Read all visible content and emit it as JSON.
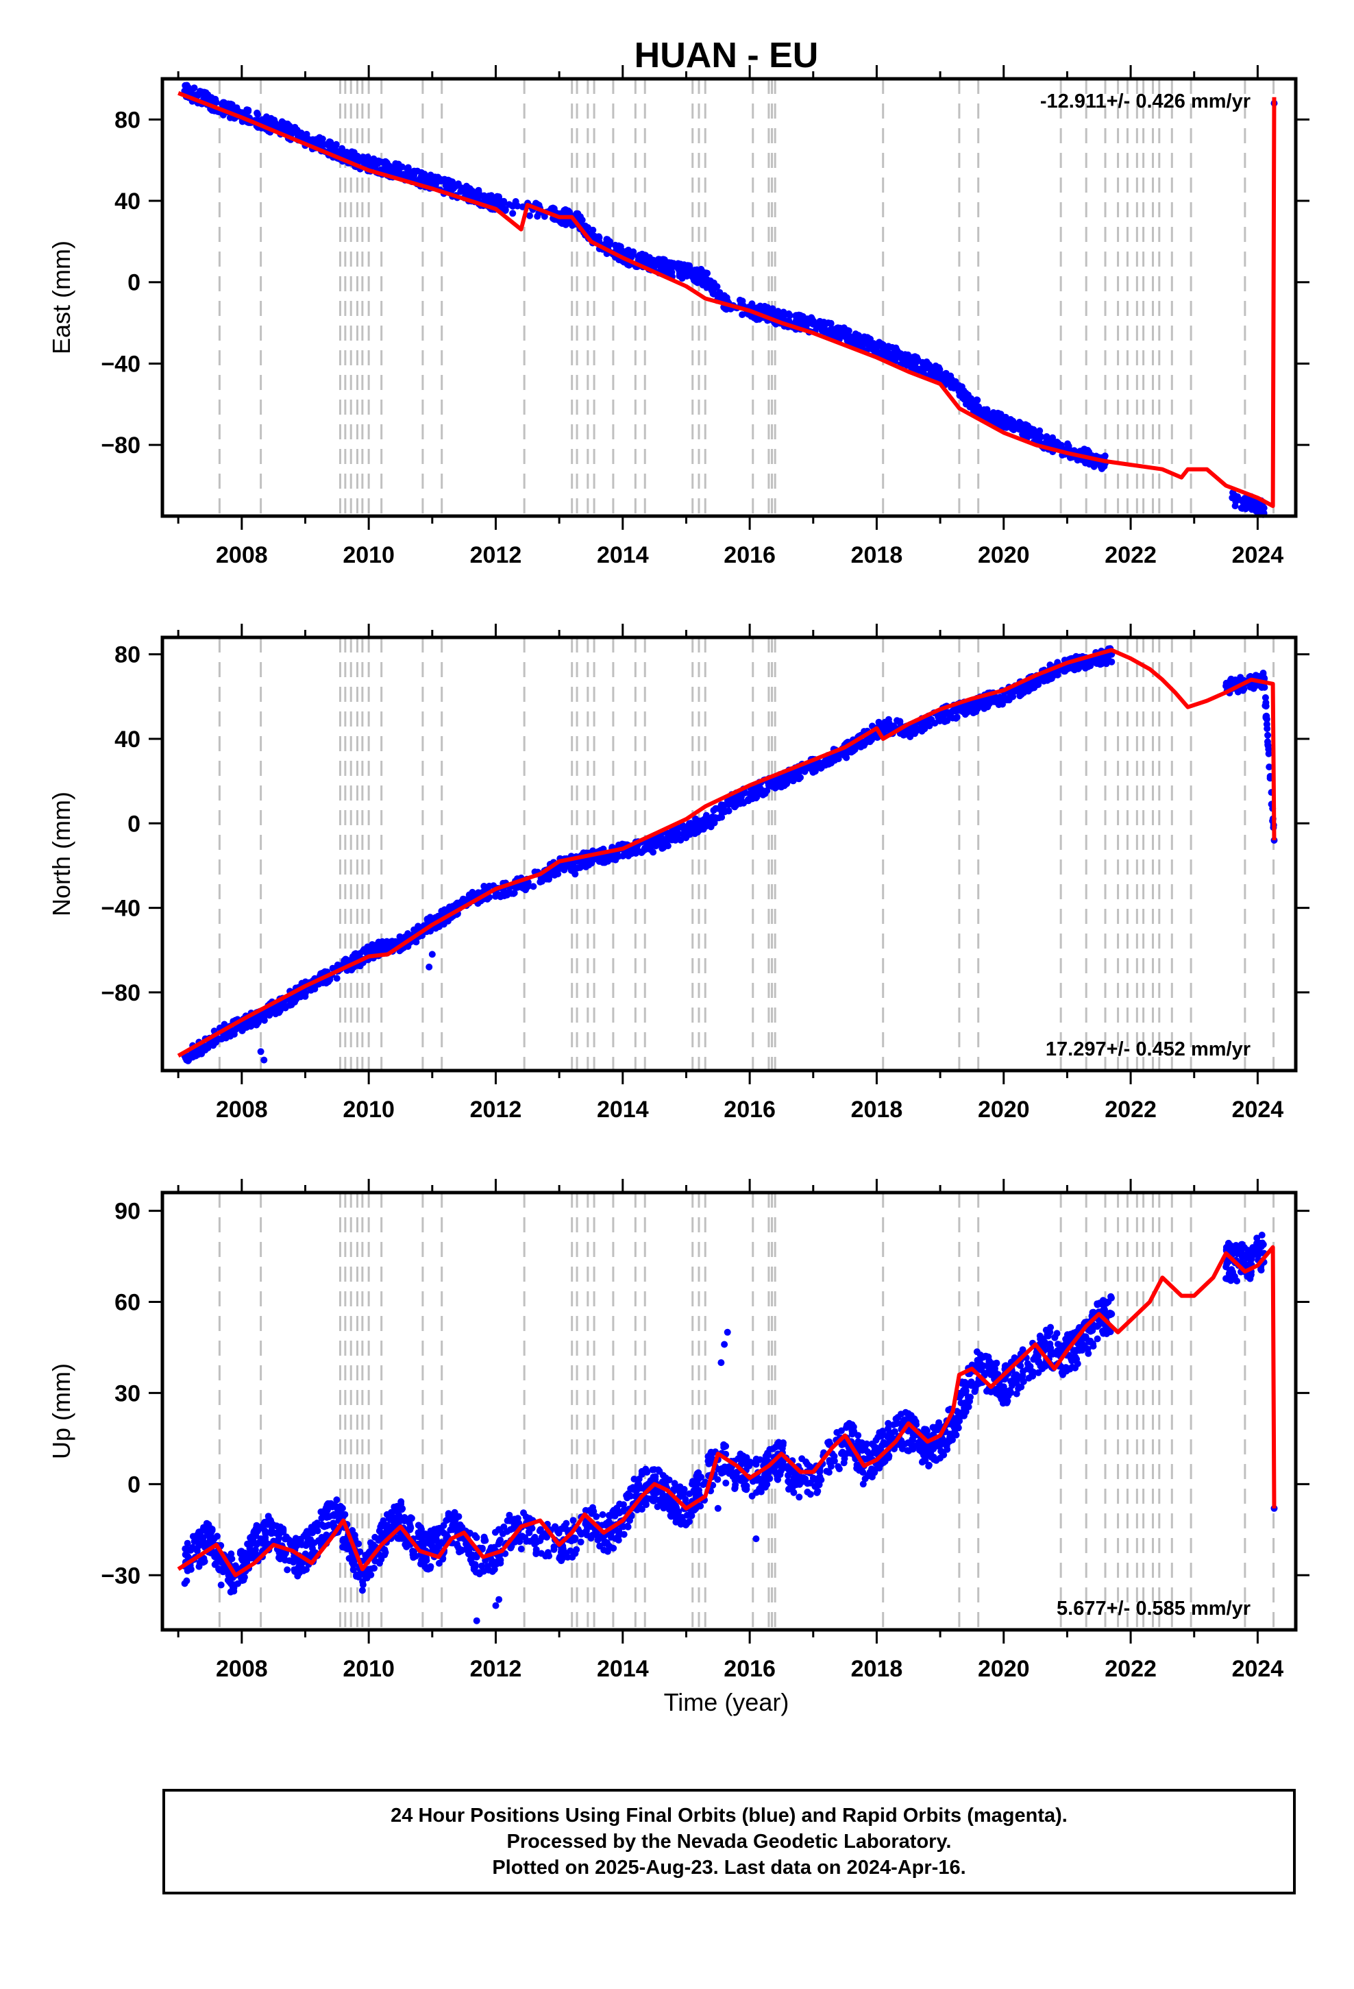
{
  "chart_data": [
    {
      "type": "scatter",
      "title": "HUAN - EU",
      "ylabel": "East (mm)",
      "xlabel": "",
      "xlim": [
        2006.75,
        2024.6
      ],
      "ylim": [
        -115,
        100
      ],
      "yticks": [
        80,
        40,
        0,
        -40,
        -80
      ],
      "xticks": [
        2008,
        2010,
        2012,
        2014,
        2016,
        2018,
        2020,
        2022,
        2024
      ],
      "rate_label": "-12.911+/- 0.426 mm/yr",
      "rate_position": "top-right",
      "grid": false,
      "series": [
        {
          "name": "",
          "color": "#0000ff",
          "x": [
            2007.1,
            2007.4,
            2007.7,
            2008.0,
            2008.3,
            2008.6,
            2008.9,
            2009.2,
            2009.5,
            2009.8,
            2010.1,
            2010.4,
            2010.7,
            2011.0,
            2011.3,
            2011.6,
            2011.9,
            2012.1,
            2012.9,
            2013.1,
            2013.3,
            2013.6,
            2013.9,
            2014.1,
            2014.4,
            2014.7,
            2015.0,
            2015.3,
            2015.6,
            2016.0,
            2016.3,
            2016.5,
            2016.8,
            2017.1,
            2017.4,
            2017.7,
            2018.0,
            2018.3,
            2018.6,
            2018.9,
            2019.2,
            2019.5,
            2019.8,
            2020.1,
            2020.4,
            2020.7,
            2021.0,
            2021.3,
            2021.6,
            2023.6,
            2023.9,
            2024.1,
            2024.26
          ],
          "y": [
            94,
            90,
            86,
            82,
            79,
            76,
            72,
            68,
            64,
            60,
            57,
            55,
            52,
            49,
            46,
            43,
            40,
            38,
            34,
            32,
            30,
            20,
            15,
            12,
            10,
            7,
            5,
            2,
            -10,
            -14,
            -16,
            -18,
            -20,
            -22,
            -25,
            -29,
            -32,
            -36,
            -40,
            -44,
            -50,
            -60,
            -66,
            -70,
            -74,
            -79,
            -82,
            -86,
            -89,
            -106,
            -109,
            -111,
            88
          ]
        },
        {
          "name": "",
          "color": "#ff0000",
          "x": [
            2007.0,
            2008.0,
            2009.0,
            2010.0,
            2011.0,
            2012.0,
            2012.4,
            2012.5,
            2013.0,
            2013.2,
            2013.3,
            2013.5,
            2014.0,
            2015.0,
            2015.3,
            2016.0,
            2016.5,
            2017.0,
            2018.0,
            2018.5,
            2019.0,
            2019.3,
            2020.0,
            2020.5,
            2021.0,
            2021.6,
            2022.5,
            2022.8,
            2022.9,
            2023.2,
            2023.5,
            2024.0,
            2024.24,
            2024.26
          ],
          "y": [
            93,
            81,
            68,
            55,
            46,
            36,
            26,
            38,
            32,
            32,
            28,
            20,
            12,
            -2,
            -8,
            -14,
            -20,
            -25,
            -37,
            -44,
            -50,
            -62,
            -74,
            -80,
            -84,
            -88,
            -92,
            -96,
            -92,
            -92,
            -100,
            -106,
            -110,
            91
          ]
        }
      ],
      "step_epochs": [
        2007.65,
        2008.3,
        2009.55,
        2009.63,
        2009.72,
        2009.82,
        2009.9,
        2010.0,
        2010.2,
        2010.85,
        2011.15,
        2012.45,
        2013.2,
        2013.28,
        2013.45,
        2013.55,
        2013.85,
        2014.2,
        2014.35,
        2015.1,
        2015.2,
        2015.3,
        2016.05,
        2016.3,
        2016.35,
        2016.4,
        2018.1,
        2019.3,
        2019.6,
        2020.9,
        2021.3,
        2021.6,
        2021.8,
        2021.95,
        2022.1,
        2022.2,
        2022.35,
        2022.45,
        2022.65,
        2022.95,
        2023.8,
        2024.25
      ]
    },
    {
      "type": "scatter",
      "title": "",
      "ylabel": "North (mm)",
      "xlabel": "",
      "xlim": [
        2006.75,
        2024.6
      ],
      "ylim": [
        -117,
        88
      ],
      "yticks": [
        80,
        40,
        0,
        -40,
        -80
      ],
      "xticks": [
        2008,
        2010,
        2012,
        2014,
        2016,
        2018,
        2020,
        2022,
        2024
      ],
      "rate_label": "17.297+/- 0.452 mm/yr",
      "rate_position": "bottom-right",
      "grid": false,
      "series": [
        {
          "name": "",
          "color": "#0000ff",
          "x": [
            2007.1,
            2007.4,
            2007.7,
            2008.0,
            2008.3,
            2008.6,
            2008.9,
            2009.2,
            2009.5,
            2009.8,
            2010.1,
            2010.4,
            2010.7,
            2011.0,
            2011.2,
            2011.5,
            2011.8,
            2012.3,
            2012.8,
            2013.0,
            2013.3,
            2013.6,
            2013.9,
            2014.2,
            2014.5,
            2014.8,
            2015.1,
            2015.4,
            2015.7,
            2016.0,
            2016.3,
            2016.6,
            2016.9,
            2017.2,
            2017.5,
            2017.7,
            2018.0,
            2018.2,
            2018.5,
            2018.8,
            2019.1,
            2019.4,
            2019.7,
            2020.0,
            2020.3,
            2020.6,
            2020.9,
            2021.2,
            2021.5,
            2021.7,
            2023.5,
            2023.8,
            2024.1,
            2024.26
          ],
          "y": [
            -110,
            -105,
            -99,
            -95,
            -91,
            -86,
            -80,
            -75,
            -70,
            -65,
            -60,
            -58,
            -54,
            -47,
            -44,
            -38,
            -33,
            -30,
            -24,
            -20,
            -18,
            -16,
            -14,
            -12,
            -10,
            -6,
            -2,
            2,
            10,
            14,
            18,
            22,
            26,
            30,
            34,
            38,
            44,
            46,
            44,
            48,
            52,
            54,
            58,
            60,
            64,
            70,
            74,
            76,
            78,
            80,
            65,
            66,
            68,
            -8
          ],
          "outliers": [
            [
              2008.3,
              -108
            ],
            [
              2008.35,
              -112
            ],
            [
              2010.95,
              -68
            ],
            [
              2011.0,
              -62
            ],
            [
              2013.25,
              -24
            ]
          ]
        },
        {
          "name": "",
          "color": "#ff0000",
          "x": [
            2007.0,
            2008.0,
            2008.5,
            2009.0,
            2010.0,
            2010.3,
            2011.0,
            2012.0,
            2012.7,
            2013.0,
            2014.0,
            2015.0,
            2015.3,
            2016.0,
            2016.5,
            2017.0,
            2017.5,
            2018.0,
            2018.1,
            2018.5,
            2019.0,
            2019.5,
            2020.0,
            2020.5,
            2021.0,
            2021.7,
            2022.0,
            2022.3,
            2022.5,
            2022.7,
            2022.9,
            2023.2,
            2023.5,
            2023.9,
            2024.24,
            2024.26
          ],
          "y": [
            -110,
            -93,
            -85,
            -77,
            -63,
            -62,
            -48,
            -31,
            -24,
            -18,
            -12,
            2,
            8,
            18,
            24,
            30,
            36,
            45,
            40,
            47,
            54,
            59,
            63,
            70,
            76,
            82,
            78,
            73,
            68,
            62,
            55,
            58,
            62,
            68,
            66,
            -8
          ]
        }
      ],
      "step_epochs": [
        2007.65,
        2008.3,
        2009.55,
        2009.63,
        2009.72,
        2009.82,
        2009.9,
        2010.0,
        2010.2,
        2010.85,
        2011.15,
        2012.45,
        2013.2,
        2013.28,
        2013.45,
        2013.55,
        2013.85,
        2014.2,
        2014.35,
        2015.1,
        2015.2,
        2015.3,
        2016.05,
        2016.3,
        2016.35,
        2016.4,
        2018.1,
        2019.3,
        2019.6,
        2020.9,
        2021.3,
        2021.6,
        2021.8,
        2021.95,
        2022.1,
        2022.2,
        2022.35,
        2022.45,
        2022.65,
        2022.95,
        2023.8,
        2024.25
      ]
    },
    {
      "type": "scatter",
      "title": "",
      "ylabel": "Up (mm)",
      "xlabel": "Time (year)",
      "xlim": [
        2006.75,
        2024.6
      ],
      "ylim": [
        -48,
        96
      ],
      "yticks": [
        90,
        60,
        30,
        0,
        -30
      ],
      "xticks": [
        2008,
        2010,
        2012,
        2014,
        2016,
        2018,
        2020,
        2022,
        2024
      ],
      "rate_label": "5.677+/- 0.585 mm/yr",
      "rate_position": "bottom-right",
      "grid": false,
      "series": [
        {
          "name": "",
          "color": "#0000ff",
          "x": [
            2007.1,
            2007.3,
            2007.5,
            2007.7,
            2007.9,
            2008.1,
            2008.3,
            2008.5,
            2008.7,
            2008.9,
            2009.1,
            2009.3,
            2009.5,
            2009.7,
            2009.9,
            2010.1,
            2010.3,
            2010.5,
            2010.7,
            2010.9,
            2011.1,
            2011.3,
            2011.5,
            2011.7,
            2012.0,
            2012.3,
            2012.6,
            2013.0,
            2013.2,
            2013.5,
            2013.8,
            2014.0,
            2014.2,
            2014.4,
            2014.6,
            2014.8,
            2015.0,
            2015.2,
            2015.5,
            2015.8,
            2016.1,
            2016.3,
            2016.5,
            2016.7,
            2017.0,
            2017.3,
            2017.6,
            2017.8,
            2018.0,
            2018.2,
            2018.4,
            2018.6,
            2018.8,
            2019.0,
            2019.2,
            2019.4,
            2019.6,
            2019.8,
            2020.0,
            2020.2,
            2020.5,
            2020.7,
            2020.9,
            2021.1,
            2021.3,
            2021.5,
            2021.7,
            2023.5,
            2023.7,
            2023.9,
            2024.1,
            2024.26
          ],
          "y": [
            -27,
            -22,
            -18,
            -28,
            -30,
            -24,
            -18,
            -16,
            -22,
            -25,
            -20,
            -14,
            -10,
            -20,
            -28,
            -22,
            -16,
            -12,
            -18,
            -22,
            -20,
            -15,
            -18,
            -24,
            -22,
            -14,
            -18,
            -20,
            -18,
            -14,
            -16,
            -12,
            -4,
            0,
            -2,
            -6,
            -8,
            -2,
            8,
            4,
            2,
            6,
            8,
            2,
            2,
            10,
            14,
            6,
            10,
            14,
            18,
            16,
            12,
            14,
            20,
            30,
            38,
            36,
            32,
            36,
            42,
            46,
            42,
            44,
            48,
            54,
            56,
            74,
            72,
            74,
            76,
            -8
          ],
          "outliers": [
            [
              2012.0,
              -40
            ],
            [
              2012.05,
              -38
            ],
            [
              2015.55,
              40
            ],
            [
              2015.6,
              46
            ],
            [
              2015.65,
              50
            ],
            [
              2015.5,
              -8
            ],
            [
              2016.1,
              -18
            ],
            [
              2011.7,
              -45
            ],
            [
              2009.9,
              -35
            ]
          ]
        },
        {
          "name": "",
          "color": "#ff0000",
          "x": [
            2007.0,
            2007.3,
            2007.6,
            2007.9,
            2008.2,
            2008.5,
            2008.8,
            2009.1,
            2009.4,
            2009.6,
            2009.9,
            2010.2,
            2010.5,
            2010.8,
            2011.1,
            2011.3,
            2011.5,
            2011.8,
            2012.1,
            2012.4,
            2012.7,
            2013.0,
            2013.2,
            2013.4,
            2013.7,
            2014.0,
            2014.3,
            2014.5,
            2014.7,
            2015.0,
            2015.3,
            2015.5,
            2015.8,
            2016.0,
            2016.3,
            2016.5,
            2016.8,
            2017.0,
            2017.3,
            2017.5,
            2017.8,
            2018.0,
            2018.3,
            2018.5,
            2018.8,
            2019.0,
            2019.2,
            2019.3,
            2019.5,
            2019.8,
            2020.0,
            2020.3,
            2020.5,
            2020.8,
            2021.0,
            2021.3,
            2021.5,
            2021.8,
            2022.0,
            2022.3,
            2022.5,
            2022.8,
            2023.0,
            2023.3,
            2023.5,
            2023.8,
            2024.0,
            2024.24,
            2024.26
          ],
          "y": [
            -28,
            -24,
            -20,
            -30,
            -26,
            -20,
            -22,
            -26,
            -18,
            -12,
            -28,
            -20,
            -14,
            -22,
            -24,
            -18,
            -16,
            -24,
            -22,
            -14,
            -12,
            -20,
            -16,
            -10,
            -16,
            -12,
            -4,
            0,
            -2,
            -8,
            -4,
            10,
            6,
            2,
            6,
            10,
            4,
            4,
            12,
            16,
            6,
            8,
            14,
            20,
            14,
            16,
            24,
            36,
            38,
            32,
            36,
            42,
            46,
            38,
            44,
            52,
            56,
            50,
            54,
            60,
            68,
            62,
            62,
            68,
            76,
            70,
            72,
            78,
            -8
          ]
        }
      ],
      "step_epochs": [
        2007.65,
        2008.3,
        2009.55,
        2009.63,
        2009.72,
        2009.82,
        2009.9,
        2010.0,
        2010.2,
        2010.85,
        2011.15,
        2012.45,
        2013.2,
        2013.28,
        2013.45,
        2013.55,
        2013.85,
        2014.2,
        2014.35,
        2015.1,
        2015.2,
        2015.3,
        2016.05,
        2016.3,
        2016.35,
        2016.4,
        2018.1,
        2019.3,
        2019.6,
        2020.9,
        2021.3,
        2021.6,
        2021.8,
        2021.95,
        2022.1,
        2022.2,
        2022.35,
        2022.45,
        2022.65,
        2022.95,
        2023.8,
        2024.25
      ]
    }
  ],
  "notes": {
    "line1": "24 Hour Positions Using Final Orbits (blue) and Rapid Orbits (magenta).",
    "line2": "Processed by the Nevada Geodetic Laboratory.",
    "line3": "Plotted on 2025-Aug-23. Last data on 2024-Apr-16."
  }
}
